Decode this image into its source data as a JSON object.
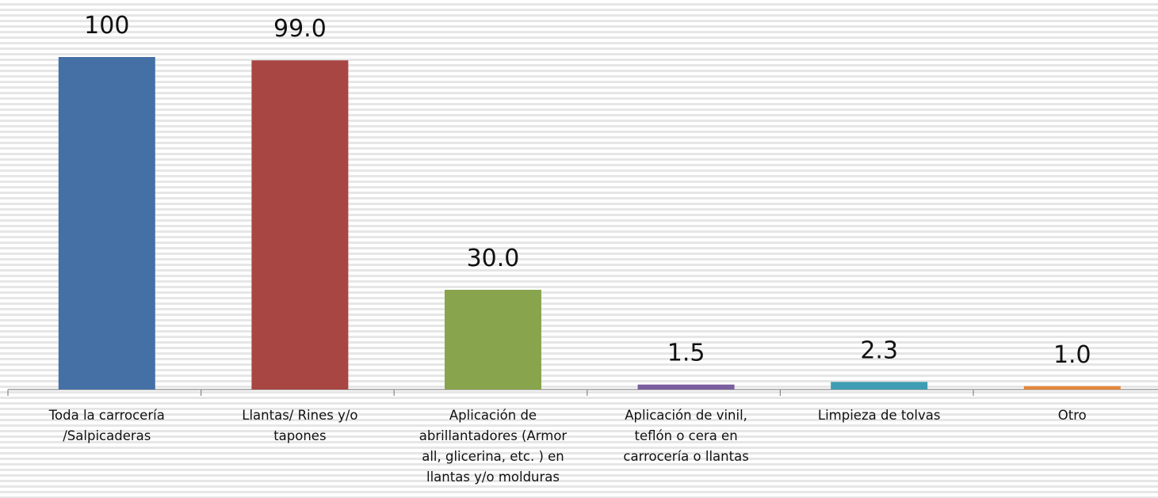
{
  "chart_data": {
    "type": "bar",
    "categories": [
      "Toda la carrocería\n/Salpicaderas",
      "Llantas/ Rines y/o\ntapones",
      "Aplicación de\nabrillantadores (Armor\nall, glicerina, etc. ) en\nllantas y/o molduras",
      "Aplicación de vinil,\nteflón o cera en\ncarrocería o llantas",
      "Limpieza de tolvas",
      "Otro"
    ],
    "values": [
      100,
      99,
      30,
      1.5,
      2.3,
      1
    ],
    "value_labels": [
      "100",
      "99.0",
      "30.0",
      "1.5",
      "2.3",
      "1.0"
    ],
    "colors": [
      "#4570a5",
      "#a84643",
      "#88a54d",
      "#7a5e9e",
      "#3f9db3",
      "#e4873a"
    ]
  }
}
